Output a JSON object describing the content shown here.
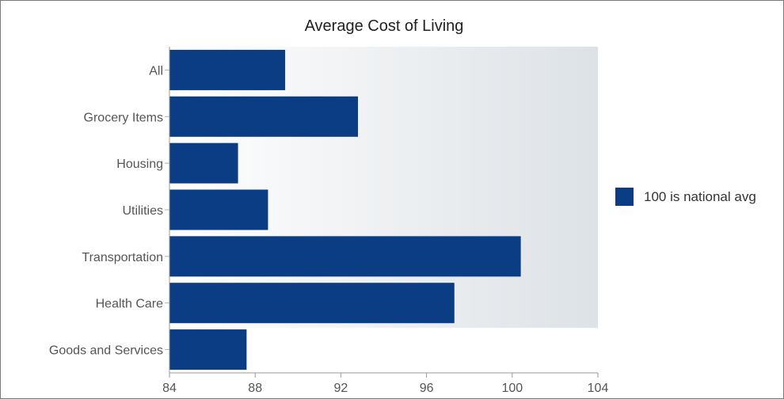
{
  "chart_data": {
    "type": "bar",
    "orientation": "horizontal",
    "title": "Average Cost of Living",
    "categories": [
      "All",
      "Grocery Items",
      "Housing",
      "Utilities",
      "Transportation",
      "Health Care",
      "Goods and Services"
    ],
    "series": [
      {
        "name": "100 is national avg",
        "color": "#0a3d83",
        "values": [
          89.4,
          92.8,
          87.2,
          88.6,
          100.4,
          97.3,
          87.6
        ]
      }
    ],
    "xlim": [
      84,
      104
    ],
    "xticks": [
      "84",
      "88",
      "92",
      "96",
      "100",
      "104"
    ],
    "legend": {
      "position": "right",
      "label": "100 is national avg"
    },
    "plot_background": "gradient light gray"
  }
}
